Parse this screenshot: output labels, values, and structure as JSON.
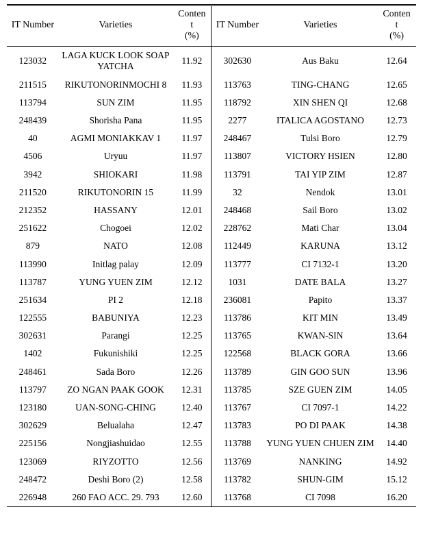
{
  "headers": {
    "it_number": "IT Number",
    "varieties": "Varieties",
    "content_line1": "Conten",
    "content_line2": "t",
    "content_line3": "(%)"
  },
  "left": [
    {
      "it": "123032",
      "var": "LAGA KUCK LOOK SOAP YATCHA",
      "val": "11.92"
    },
    {
      "it": "211515",
      "var": "RIKUTONORINMOCHI 8",
      "val": "11.93"
    },
    {
      "it": "113794",
      "var": "SUN ZIM",
      "val": "11.95"
    },
    {
      "it": "248439",
      "var": "Shorisha Pana",
      "val": "11.95"
    },
    {
      "it": "40",
      "var": "AGMI MONIAKKAV 1",
      "val": "11.97"
    },
    {
      "it": "4506",
      "var": "Uryuu",
      "val": "11.97"
    },
    {
      "it": "3942",
      "var": "SHIOKARI",
      "val": "11.98"
    },
    {
      "it": "211520",
      "var": "RIKUTONORIN  15",
      "val": "11.99"
    },
    {
      "it": "212352",
      "var": "HASSANY",
      "val": "12.01"
    },
    {
      "it": "251622",
      "var": "Chogoei",
      "val": "12.02"
    },
    {
      "it": "879",
      "var": "NATO",
      "val": "12.08"
    },
    {
      "it": "113990",
      "var": "Initlag palay",
      "val": "12.09"
    },
    {
      "it": "113787",
      "var": "YUNG YUEN ZIM",
      "val": "12.12"
    },
    {
      "it": "251634",
      "var": "PI 2",
      "val": "12.18"
    },
    {
      "it": "122555",
      "var": "BABUNIYA",
      "val": "12.23"
    },
    {
      "it": "302631",
      "var": "Parangi",
      "val": "12.25"
    },
    {
      "it": "1402",
      "var": "Fukunishiki",
      "val": "12.25"
    },
    {
      "it": "248461",
      "var": "Sada Boro",
      "val": "12.26"
    },
    {
      "it": "113797",
      "var": "ZO NGAN PAAK GOOK",
      "val": "12.31"
    },
    {
      "it": "123180",
      "var": "UAN-SONG-CHING",
      "val": "12.40"
    },
    {
      "it": "302629",
      "var": "Belualaha",
      "val": "12.47"
    },
    {
      "it": "225156",
      "var": "Nongjiashuidao",
      "val": "12.55"
    },
    {
      "it": "123069",
      "var": "RIYZOTTO",
      "val": "12.56"
    },
    {
      "it": "248472",
      "var": "Deshi Boro (2)",
      "val": "12.58"
    },
    {
      "it": "226948",
      "var": "260 FAO ACC. 29. 793",
      "val": "12.60"
    }
  ],
  "right": [
    {
      "it": "302630",
      "var": "Aus Baku",
      "val": "12.64"
    },
    {
      "it": "113763",
      "var": "TING-CHANG",
      "val": "12.65"
    },
    {
      "it": "118792",
      "var": "XIN SHEN QI",
      "val": "12.68"
    },
    {
      "it": "2277",
      "var": "ITALICA AGOSTANO",
      "val": "12.73"
    },
    {
      "it": "248467",
      "var": "Tulsi Boro",
      "val": "12.79"
    },
    {
      "it": "113807",
      "var": "VICTORY HSIEN",
      "val": "12.80"
    },
    {
      "it": "113791",
      "var": "TAI YIP ZIM",
      "val": "12.87"
    },
    {
      "it": "32",
      "var": "Nendok",
      "val": "13.01"
    },
    {
      "it": "248468",
      "var": "Sail Boro",
      "val": "13.02"
    },
    {
      "it": "228762",
      "var": "Mati Char",
      "val": "13.04"
    },
    {
      "it": "112449",
      "var": "KARUNA",
      "val": "13.12"
    },
    {
      "it": "113777",
      "var": "CI 7132-1",
      "val": "13.20"
    },
    {
      "it": "1031",
      "var": "DATE BALA",
      "val": "13.27"
    },
    {
      "it": "236081",
      "var": "Papito",
      "val": "13.37"
    },
    {
      "it": "113786",
      "var": "KIT MIN",
      "val": "13.49"
    },
    {
      "it": "113765",
      "var": "KWAN-SIN",
      "val": "13.64"
    },
    {
      "it": "122568",
      "var": "BLACK GORA",
      "val": "13.66"
    },
    {
      "it": "113789",
      "var": "GIN GOO SUN",
      "val": "13.96"
    },
    {
      "it": "113785",
      "var": "SZE GUEN ZIM",
      "val": "14.05"
    },
    {
      "it": "113767",
      "var": "CI 7097-1",
      "val": "14.22"
    },
    {
      "it": "113783",
      "var": "PO DI PAAK",
      "val": "14.38"
    },
    {
      "it": "113788",
      "var": "YUNG YUEN CHUEN ZIM",
      "val": "14.40"
    },
    {
      "it": "113769",
      "var": "NANKING",
      "val": "14.92"
    },
    {
      "it": "113782",
      "var": "SHUN-GIM",
      "val": "15.12"
    },
    {
      "it": "113768",
      "var": "CI 7098",
      "val": "16.20"
    }
  ]
}
